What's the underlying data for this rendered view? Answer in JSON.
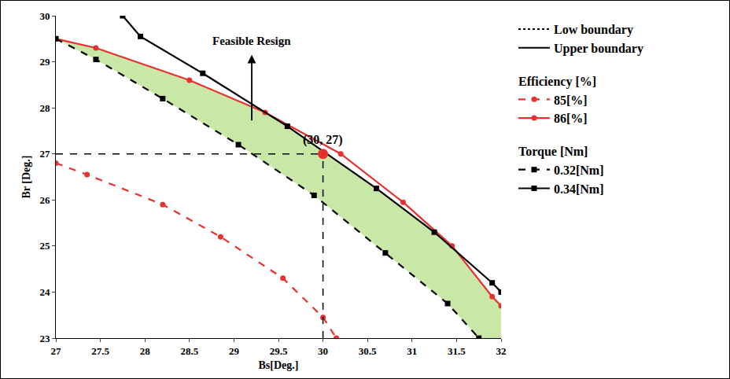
{
  "chart_data": {
    "type": "line",
    "xlabel": "Bs[Deg.]",
    "ylabel": "Br [Deg.]",
    "xlim": [
      27,
      32
    ],
    "ylim": [
      23,
      30
    ],
    "xticks": [
      27,
      27.5,
      28,
      28.5,
      29,
      29.5,
      30,
      30.5,
      31,
      31.5,
      32
    ],
    "yticks": [
      23,
      24,
      25,
      26,
      27,
      28,
      29,
      30
    ],
    "grid": false,
    "legend": "right",
    "legend_keys": [
      {
        "name": "Low boundary",
        "line_style": "dotted",
        "color": "#000000"
      },
      {
        "name": "Upper boundary",
        "line_style": "solid",
        "color": "#000000"
      }
    ],
    "series": [
      {
        "name": "85[%]",
        "group": "Efficiency [%]",
        "color": "#e8302e",
        "line_style": "dashed",
        "marker": "circle",
        "x": [
          27,
          27.35,
          28.2,
          28.85,
          29.55,
          30,
          30.15
        ],
        "values": [
          26.8,
          26.55,
          25.9,
          25.2,
          24.3,
          23.45,
          23
        ]
      },
      {
        "name": "86[%]",
        "group": "Efficiency [%]",
        "color": "#e8302e",
        "line_style": "solid",
        "marker": "circle",
        "x": [
          27,
          27.45,
          28.5,
          29.35,
          30.2,
          30.9,
          31.45,
          31.9,
          32
        ],
        "values": [
          29.5,
          29.3,
          28.6,
          27.9,
          27.0,
          25.95,
          25.0,
          23.9,
          23.7
        ]
      },
      {
        "name": "0.32[Nm]",
        "group": "Torque [Nm]",
        "color": "#000000",
        "line_style": "dashed",
        "marker": "square",
        "x": [
          27,
          27.45,
          28.2,
          29.05,
          29.9,
          30.7,
          31.4,
          31.75
        ],
        "values": [
          29.5,
          29.05,
          28.2,
          27.2,
          26.1,
          24.85,
          23.75,
          23
        ]
      },
      {
        "name": "0.34[Nm]",
        "group": "Torque [Nm]",
        "color": "#000000",
        "line_style": "solid",
        "marker": "square",
        "x": [
          27.75,
          27.95,
          28.65,
          29.6,
          30.6,
          31.25,
          31.9,
          32
        ],
        "values": [
          30,
          29.55,
          28.75,
          27.6,
          26.25,
          25.3,
          24.2,
          24.0
        ]
      }
    ],
    "region_color": "#c9e7a7",
    "point": {
      "x": 30,
      "y": 27,
      "label": "(30, 27)",
      "color": "#e8302e"
    },
    "annotation": {
      "text": "Feasible Resign",
      "x": 29.2,
      "y": 29.45,
      "arrow_from": [
        29.2,
        27.7
      ],
      "arrow_to": [
        29.2,
        29.15
      ]
    }
  }
}
